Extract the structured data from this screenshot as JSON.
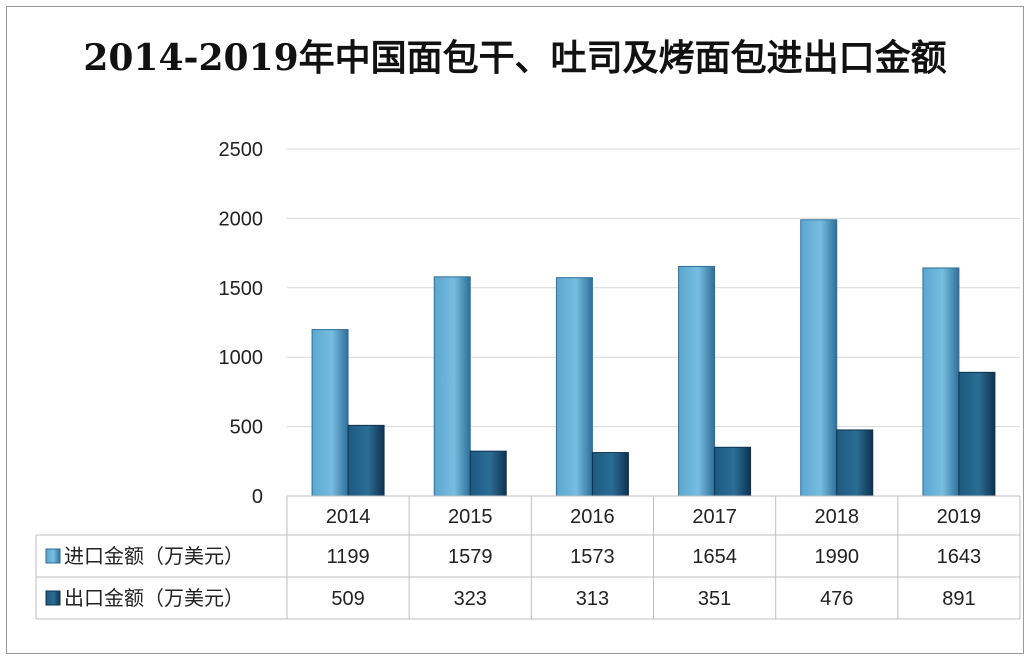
{
  "title": "2014-2019年中国面包干、吐司及烤面包进出口金额",
  "colors": {
    "import": "#5ba7cf",
    "import_dark": "#2f6f99",
    "export": "#1e5a7e",
    "export_dark": "#0f3350",
    "grid": "#d9d9d9",
    "table_border": "#bfbfbf"
  },
  "chart_data": {
    "type": "bar",
    "categories": [
      "2014",
      "2015",
      "2016",
      "2017",
      "2018",
      "2019"
    ],
    "series": [
      {
        "name": "进口金额（万美元）",
        "values": [
          1199,
          1579,
          1573,
          1654,
          1990,
          1643
        ]
      },
      {
        "name": "出口金额（万美元）",
        "values": [
          509,
          323,
          313,
          351,
          476,
          891
        ]
      }
    ],
    "ylim": [
      0,
      2500
    ],
    "yticks": [
      0,
      500,
      1000,
      1500,
      2000,
      2500
    ],
    "grid": true,
    "legend": "data-table"
  }
}
